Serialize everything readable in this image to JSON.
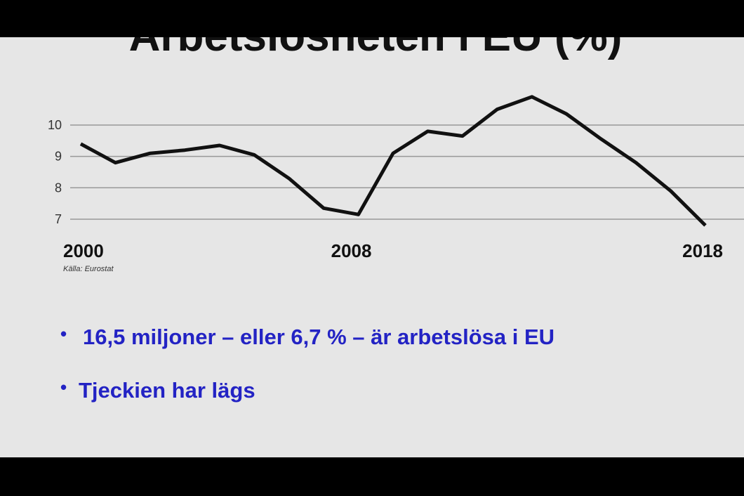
{
  "chart_data": {
    "type": "line",
    "title": "Arbetslösheten i EU (%)",
    "x": [
      2000,
      2001,
      2002,
      2003,
      2004,
      2005,
      2006,
      2007,
      2008,
      2009,
      2010,
      2011,
      2012,
      2013,
      2014,
      2015,
      2016,
      2017,
      2018
    ],
    "values": [
      9.4,
      8.8,
      9.1,
      9.2,
      9.35,
      9.05,
      8.3,
      7.35,
      7.15,
      9.1,
      9.8,
      9.65,
      10.5,
      10.9,
      10.35,
      9.55,
      8.8,
      7.9,
      6.8
    ],
    "color": "#111111",
    "xlim": [
      2000,
      2018
    ],
    "xticks": [
      2000,
      2008,
      2018
    ],
    "ylim": [
      6.5,
      11
    ],
    "yticks": [
      7,
      8,
      9,
      10
    ],
    "grid": true,
    "source": "Källa: Eurostat"
  },
  "bullets": [
    "16,5 miljoner – eller 6,7 % – är arbetslösa i EU",
    "Tjeckien har lägs"
  ]
}
